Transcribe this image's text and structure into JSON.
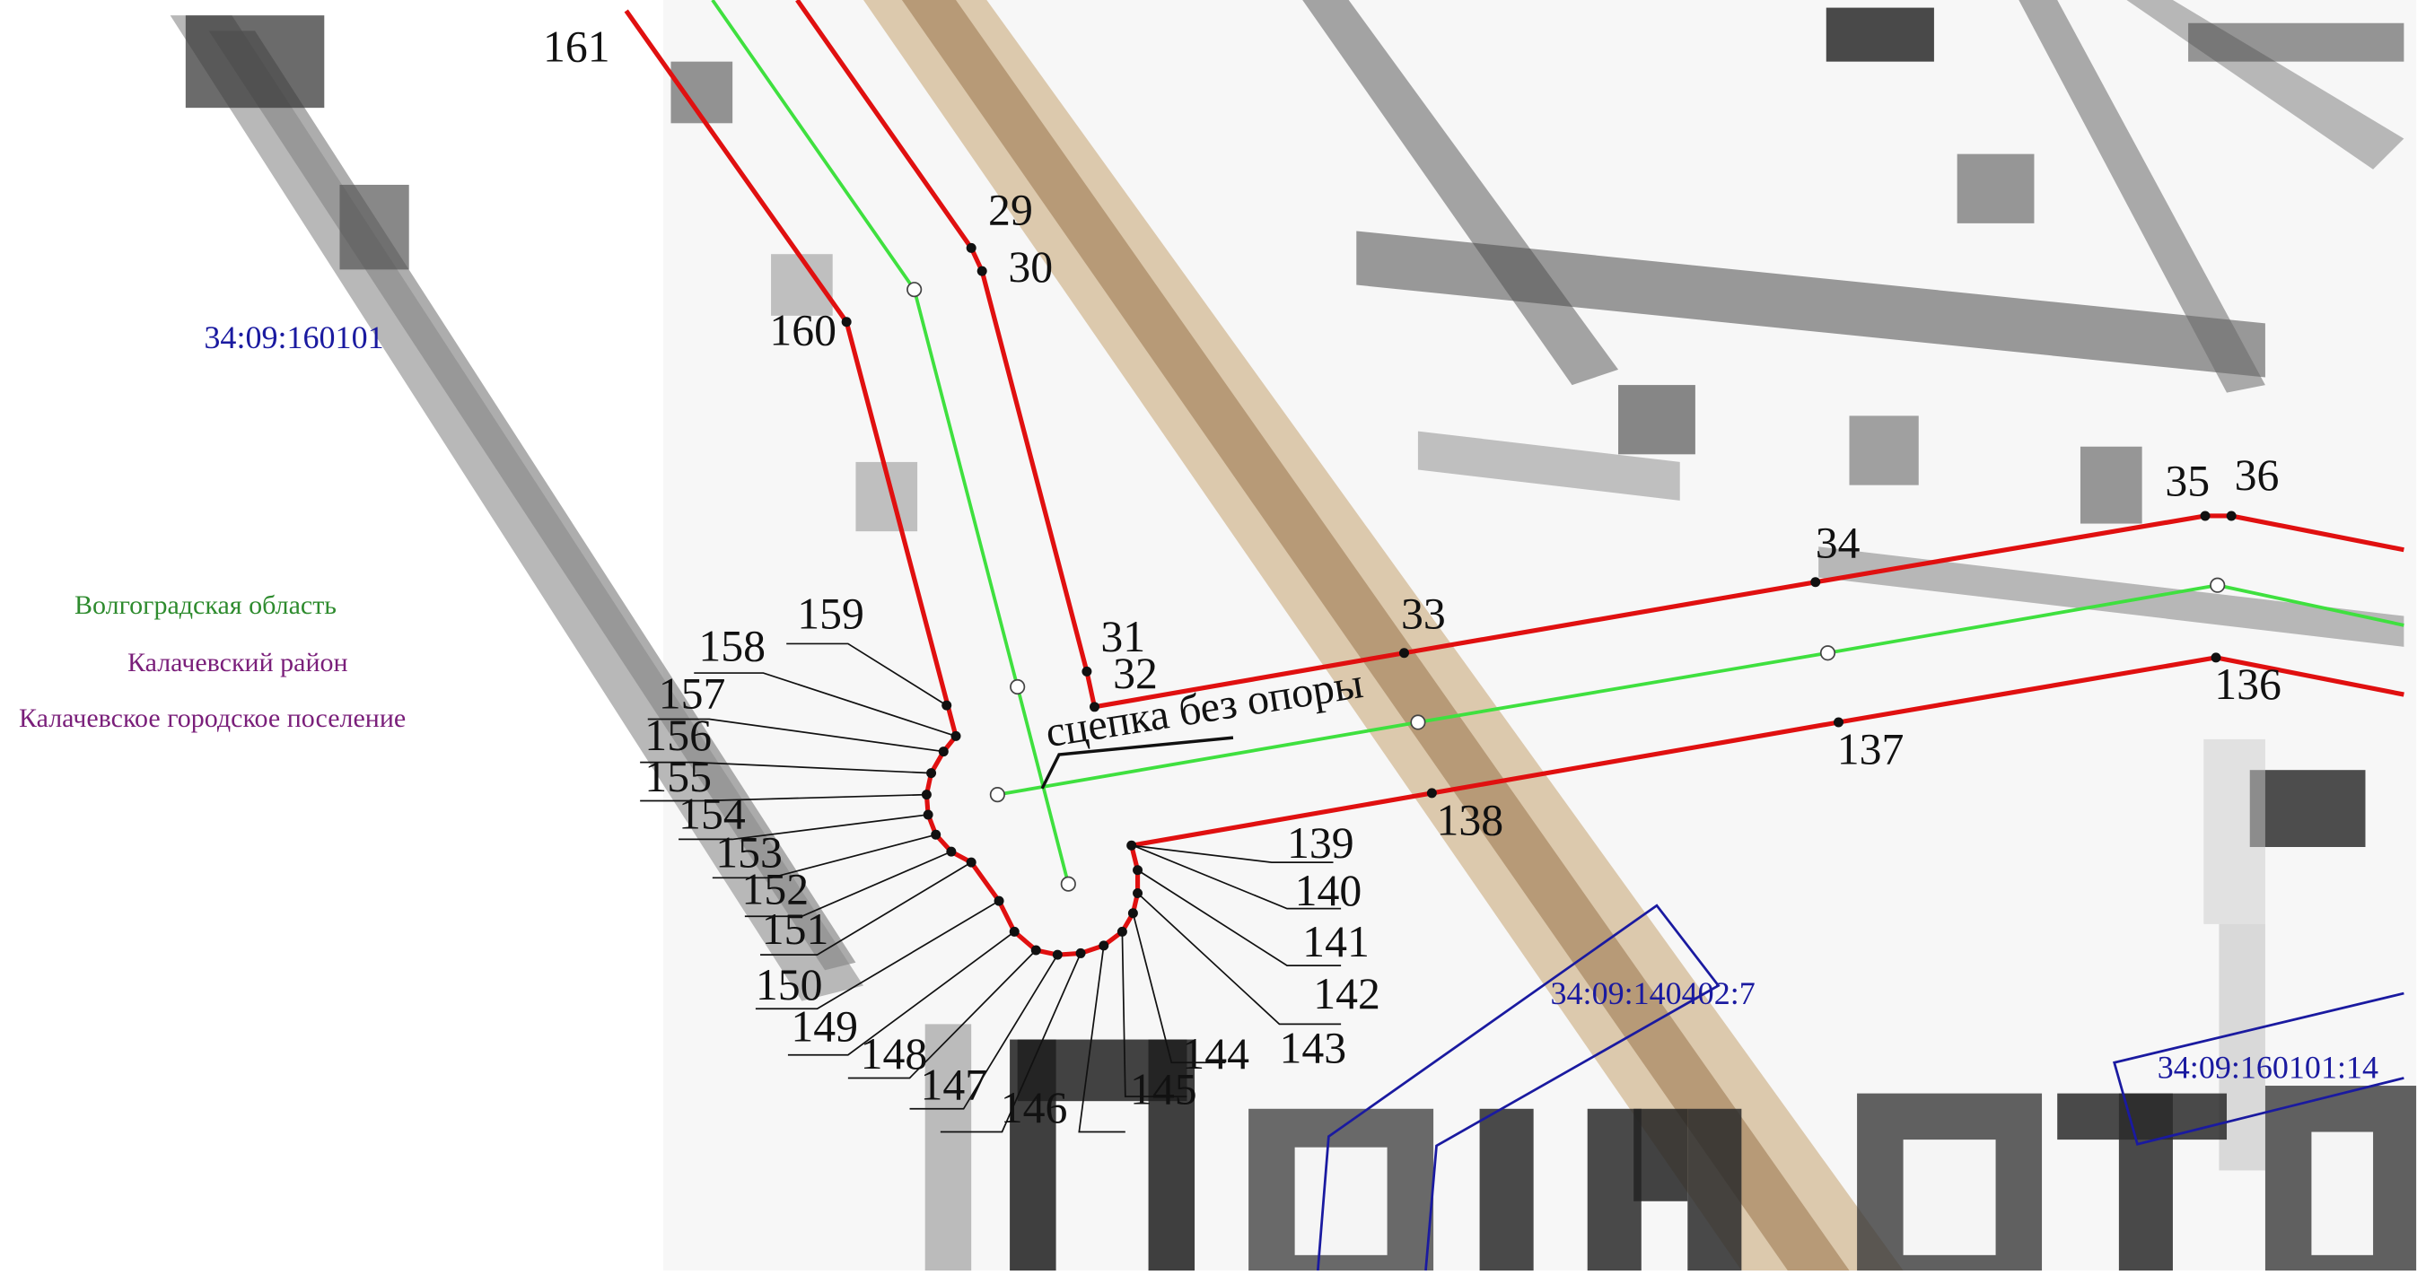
{
  "legend": {
    "region": "Волгоградская область",
    "district": "Калачевский район",
    "settlement": "Калачевское городское поселение"
  },
  "colors": {
    "region": "#2e8b2e",
    "district": "#7a1f7a",
    "settlement": "#7a1f7a",
    "boundary": "#e01010",
    "axis": "#3fe03f",
    "cadastral": "#1a1aa0",
    "road": "#a98a63"
  },
  "cadastral": {
    "block": "34:09:160101",
    "parcel_a": "34:09:140402:7",
    "parcel_b": "34:09:160101:14"
  },
  "annotation": "сцепка без опоры",
  "points": {
    "p29": "29",
    "p30": "30",
    "p31": "31",
    "p32": "32",
    "p33": "33",
    "p34": "34",
    "p35": "35",
    "p36": "36",
    "p136": "136",
    "p137": "137",
    "p138": "138",
    "p139": "139",
    "p140": "140",
    "p141": "141",
    "p142": "142",
    "p143": "143",
    "p144": "144",
    "p145": "145",
    "p146": "146",
    "p147": "147",
    "p148": "148",
    "p149": "149",
    "p150": "150",
    "p151": "151",
    "p152": "152",
    "p153": "153",
    "p154": "154",
    "p155": "155",
    "p156": "156",
    "p157": "157",
    "p158": "158",
    "p159": "159",
    "p160": "160",
    "p161": "161"
  }
}
